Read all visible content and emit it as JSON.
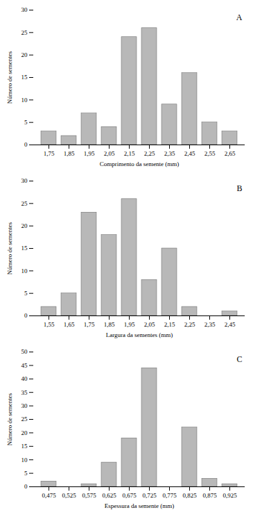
{
  "chart_data": [
    {
      "type": "bar",
      "categories": [
        "1,75",
        "1,85",
        "1,95",
        "2,05",
        "2,15",
        "2,25",
        "2,35",
        "2,45",
        "2,55",
        "2,65"
      ],
      "values": [
        3,
        2,
        7,
        4,
        24,
        26,
        9,
        16,
        5,
        3
      ],
      "xlabel": "Comprimento da semente (mm)",
      "ylabel": "Número de sementes",
      "ylim": [
        0,
        30
      ],
      "yticks": [
        0,
        5,
        10,
        15,
        20,
        25,
        30
      ],
      "annotation": "A",
      "color": "#b8b8b8"
    },
    {
      "type": "bar",
      "categories": [
        "1,55",
        "1,65",
        "1,75",
        "1,85",
        "1,95",
        "2,05",
        "2,15",
        "2,25",
        "2,35",
        "2,45"
      ],
      "values": [
        2,
        5,
        23,
        18,
        26,
        8,
        15,
        2,
        0,
        1
      ],
      "xlabel": "Largura da sementes (mm)",
      "ylabel": "Número de sementes",
      "ylim": [
        0,
        30
      ],
      "yticks": [
        0,
        5,
        10,
        15,
        20,
        25,
        30
      ],
      "annotation": "B",
      "color": "#b8b8b8"
    },
    {
      "type": "bar",
      "categories": [
        "0,475",
        "0,525",
        "0,575",
        "0,625",
        "0,675",
        "0,725",
        "0,775",
        "0,825",
        "0,875",
        "0,925"
      ],
      "values": [
        2,
        0,
        1,
        9,
        18,
        44,
        0,
        22,
        3,
        1
      ],
      "xlabel": "Espessura da semente (mm)",
      "ylabel": "Número de sementes",
      "ylim": [
        0,
        50
      ],
      "yticks": [
        0,
        5,
        10,
        15,
        20,
        25,
        30,
        35,
        40,
        45,
        50
      ],
      "annotation": "C",
      "color": "#b8b8b8"
    }
  ]
}
